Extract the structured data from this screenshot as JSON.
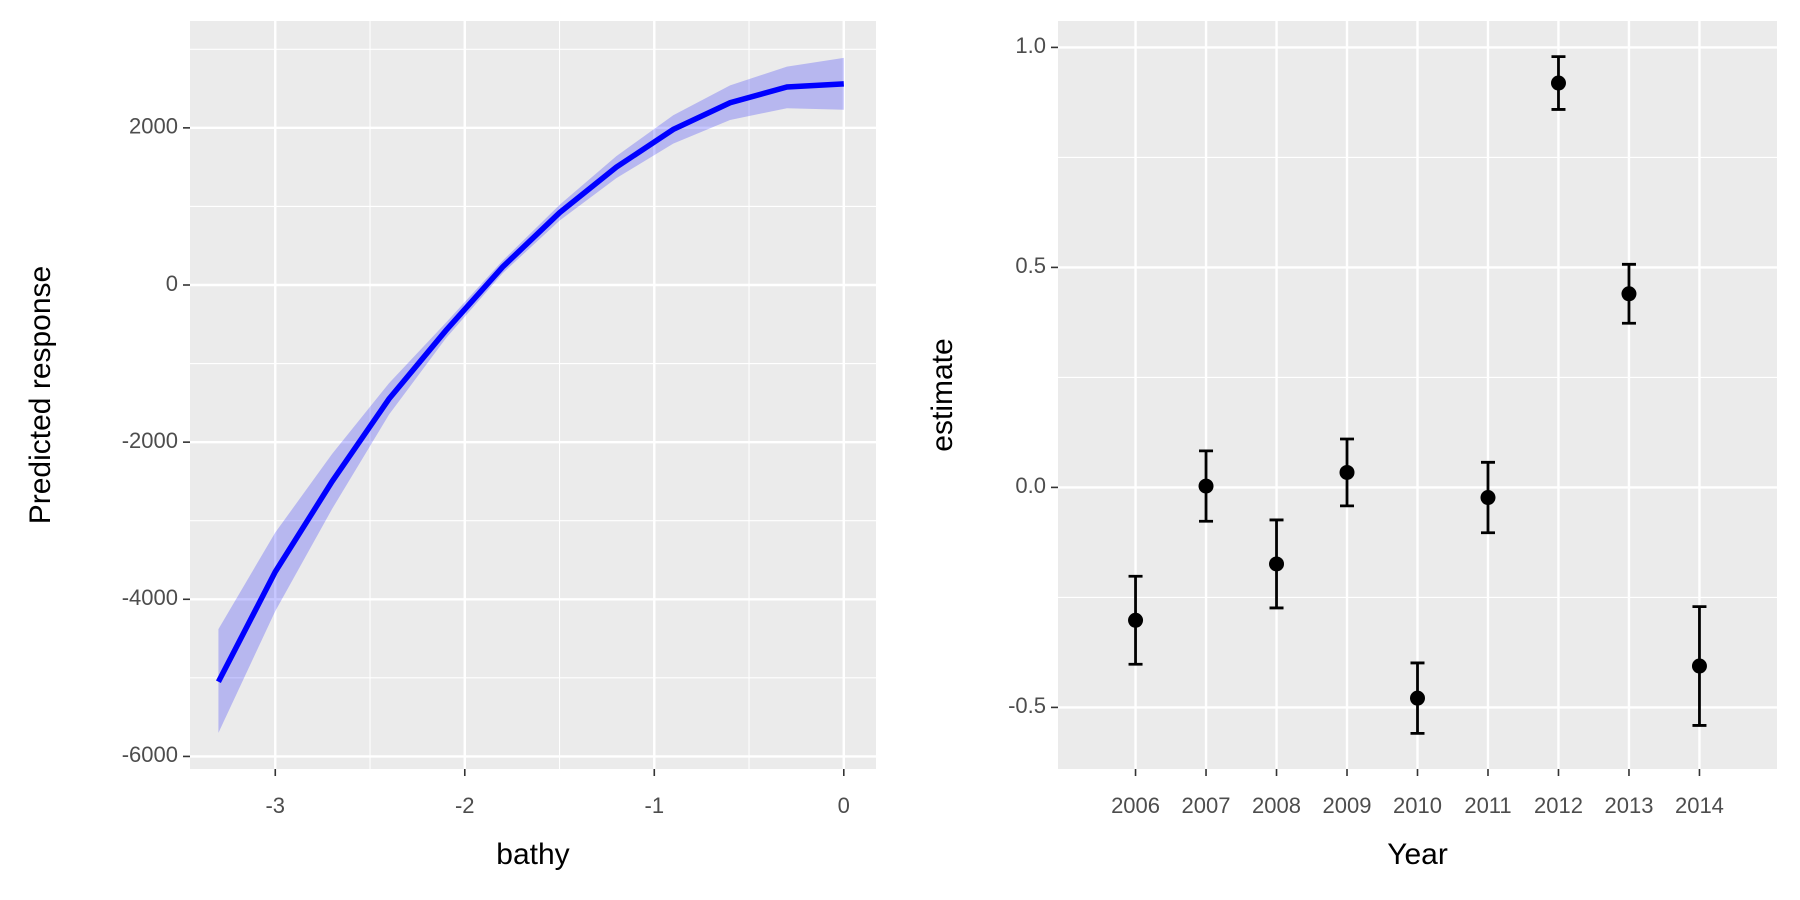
{
  "chart_data": [
    {
      "type": "line",
      "x_label": "bathy",
      "y_label": "Predicted response",
      "x": [
        -3.3,
        -3,
        -2.7,
        -2.4,
        -2.1,
        -1.8,
        -1.5,
        -1.2,
        -0.9,
        -0.6,
        -0.3,
        0
      ],
      "series": [
        {
          "color": "#0000ff",
          "values": [
            -5050,
            -3650,
            -2500,
            -1450,
            -580,
            230,
            920,
            1500,
            1980,
            2320,
            2520,
            2560
          ],
          "lower": [
            -5700,
            -4150,
            -2850,
            -1650,
            -680,
            150,
            820,
            1360,
            1800,
            2100,
            2250,
            2230
          ],
          "upper": [
            -4380,
            -3150,
            -2150,
            -1250,
            -480,
            310,
            1020,
            1640,
            2160,
            2540,
            2780,
            2890
          ]
        }
      ],
      "xlim": [
        -3.45,
        0.17
      ],
      "ylim": [
        -6160,
        3360
      ],
      "xticks": [
        -3,
        -2,
        -1,
        0
      ],
      "yticks": [
        -6000,
        -4000,
        -2000,
        0,
        2000
      ],
      "xminor": [
        -2.5,
        -1.5,
        -0.5
      ],
      "yminor": [
        -5000,
        -3000,
        -1000,
        1000,
        3000
      ]
    },
    {
      "type": "pointrange",
      "x_label": "Year",
      "y_label": "estimate",
      "categories": [
        "2006",
        "2007",
        "2008",
        "2009",
        "2010",
        "2011",
        "2012",
        "2013",
        "2014"
      ],
      "values": [
        -0.302,
        0.003,
        -0.174,
        0.034,
        -0.479,
        -0.023,
        0.919,
        0.44,
        -0.406
      ],
      "error": [
        0.1,
        0.08,
        0.1,
        0.076,
        0.08,
        0.08,
        0.06,
        0.067,
        0.135
      ],
      "color": "#000000",
      "ylim": [
        -0.64,
        1.06
      ],
      "yticks": [
        -0.5,
        {
          "value": 0,
          "label": "0.0"
        },
        0.5,
        {
          "value": 1,
          "label": "1.0"
        }
      ],
      "yminor": [
        -0.25,
        0.25,
        0.75
      ]
    }
  ]
}
